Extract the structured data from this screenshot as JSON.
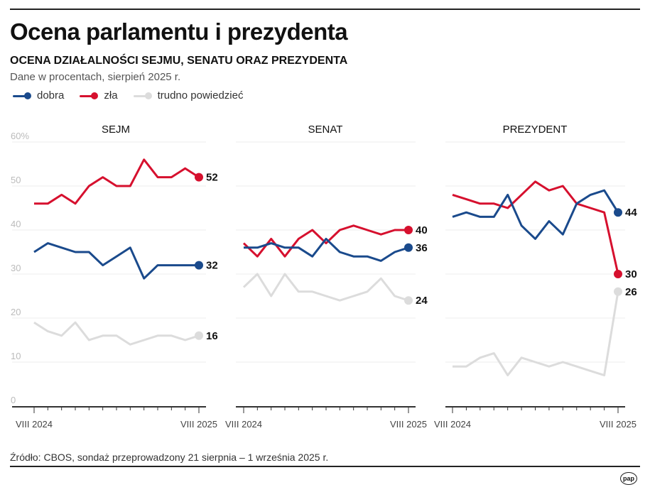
{
  "header": {
    "title": "Ocena parlamentu i prezydenta",
    "subtitle": "OCENA DZIAŁALNOŚCI SEJMU, SENATU ORAZ PREZYDENTA",
    "note": "Dane w procentach, sierpień 2025 r."
  },
  "legend": [
    {
      "label": "dobra",
      "color": "#1a4a8c"
    },
    {
      "label": "zła",
      "color": "#d6102e"
    },
    {
      "label": "trudno powiedzieć",
      "color": "#dcdcdc"
    }
  ],
  "footer": {
    "source": "Źródło: CBOS, sondaż przeprowadzony 21 sierpnia – 1 września 2025 r.",
    "logo": "pap"
  },
  "chart_data": [
    {
      "type": "line",
      "title": "SEJM",
      "ylim": [
        0,
        60
      ],
      "yticks": [
        "0",
        "10",
        "20",
        "30",
        "40",
        "50",
        "60%"
      ],
      "xticks": [
        "VIII 2024",
        "VIII 2025"
      ],
      "grid": true,
      "series": [
        {
          "name": "dobra",
          "values": [
            35,
            37,
            36,
            35,
            35,
            32,
            34,
            36,
            29,
            32,
            32,
            32,
            32
          ],
          "end_label": "32"
        },
        {
          "name": "zła",
          "values": [
            46,
            46,
            48,
            46,
            50,
            52,
            50,
            50,
            56,
            52,
            52,
            54,
            52
          ],
          "end_label": "52"
        },
        {
          "name": "trudno powiedzieć",
          "values": [
            19,
            17,
            16,
            19,
            15,
            16,
            16,
            14,
            15,
            16,
            16,
            15,
            16
          ],
          "end_label": "16"
        }
      ]
    },
    {
      "type": "line",
      "title": "SENAT",
      "ylim": [
        0,
        60
      ],
      "xticks": [
        "VIII 2024",
        "VIII 2025"
      ],
      "grid": true,
      "series": [
        {
          "name": "dobra",
          "values": [
            36,
            36,
            37,
            36,
            36,
            34,
            38,
            35,
            34,
            34,
            33,
            35,
            36
          ],
          "end_label": "36"
        },
        {
          "name": "zła",
          "values": [
            37,
            34,
            38,
            34,
            38,
            40,
            37,
            40,
            41,
            40,
            39,
            40,
            40
          ],
          "end_label": "40"
        },
        {
          "name": "trudno powiedzieć",
          "values": [
            27,
            30,
            25,
            30,
            26,
            26,
            25,
            24,
            25,
            26,
            29,
            25,
            24
          ],
          "end_label": "24"
        }
      ]
    },
    {
      "type": "line",
      "title": "PREZYDENT",
      "ylim": [
        0,
        60
      ],
      "xticks": [
        "VIII 2024",
        "VIII 2025"
      ],
      "grid": true,
      "series": [
        {
          "name": "dobra",
          "values": [
            43,
            44,
            43,
            43,
            48,
            41,
            38,
            42,
            39,
            46,
            48,
            49,
            44
          ],
          "end_label": "44"
        },
        {
          "name": "zła",
          "values": [
            48,
            47,
            46,
            46,
            45,
            48,
            51,
            49,
            50,
            46,
            45,
            44,
            30
          ],
          "end_label": "30"
        },
        {
          "name": "trudno powiedzieć",
          "values": [
            9,
            9,
            11,
            12,
            7,
            11,
            10,
            9,
            10,
            9,
            8,
            7,
            26
          ],
          "end_label": "26"
        }
      ]
    }
  ]
}
